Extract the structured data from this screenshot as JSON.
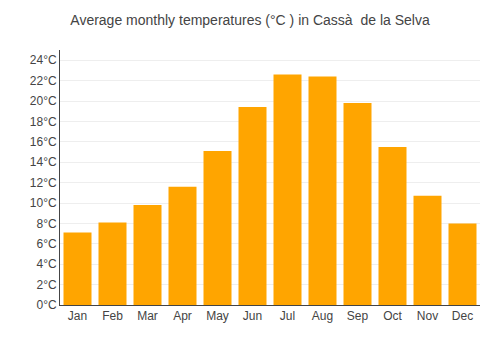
{
  "chart_data": {
    "type": "bar",
    "title": "Average monthly temperatures (°C ) in Cassà  de la Selva",
    "categories": [
      "Jan",
      "Feb",
      "Mar",
      "Apr",
      "May",
      "Jun",
      "Jul",
      "Aug",
      "Sep",
      "Oct",
      "Nov",
      "Dec"
    ],
    "values": [
      7.1,
      8.1,
      9.8,
      11.6,
      15.1,
      19.4,
      22.6,
      22.4,
      19.8,
      15.5,
      10.7,
      8.0
    ],
    "color": "#FFA500",
    "ylim": [
      0,
      25
    ],
    "yticks": [
      {
        "value": 0,
        "label": "0°C"
      },
      {
        "value": 2,
        "label": "2°C"
      },
      {
        "value": 4,
        "label": "4°C"
      },
      {
        "value": 6,
        "label": "6°C"
      },
      {
        "value": 8,
        "label": "8°C"
      },
      {
        "value": 10,
        "label": "10°C"
      },
      {
        "value": 12,
        "label": "12°C"
      },
      {
        "value": 14,
        "label": "14°C"
      },
      {
        "value": 16,
        "label": "16°C"
      },
      {
        "value": 18,
        "label": "18°C"
      },
      {
        "value": 20,
        "label": "20°C"
      },
      {
        "value": 22,
        "label": "22°C"
      },
      {
        "value": 24,
        "label": "24°C"
      }
    ],
    "grid": true
  }
}
